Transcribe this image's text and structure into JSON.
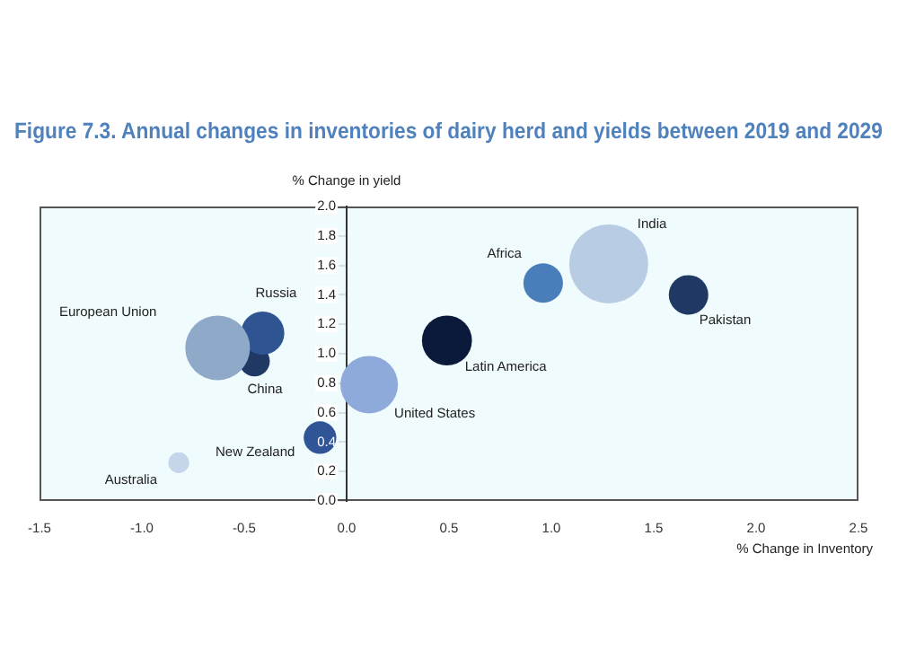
{
  "chart_data": {
    "type": "bubble",
    "title": "Figure 7.3. Annual changes in inventories of dairy herd and yields between 2019 and 2029",
    "xlabel": "% Change in Inventory",
    "ylabel": "% Change in yield",
    "series": [
      {
        "name": "India",
        "color": "#b8cce4",
        "x": [
          1.28
        ],
        "values": [
          1.61
        ],
        "sizes": [
          1
        ]
      },
      {
        "name": "Africa",
        "color": "#4a7ebb",
        "x": [
          0.96
        ],
        "values": [
          1.48
        ],
        "sizes": [
          0.25
        ]
      },
      {
        "name": "Pakistan",
        "color": "#1f3864",
        "x": [
          1.67
        ],
        "values": [
          1.4
        ],
        "sizes": [
          0.25
        ]
      },
      {
        "name": "Latin America",
        "color": "#0b1a3a",
        "x": [
          0.49
        ],
        "values": [
          1.09
        ],
        "sizes": [
          0.4
        ]
      },
      {
        "name": "European Union",
        "color": "#8fa9c9",
        "x": [
          -0.63
        ],
        "values": [
          1.04
        ],
        "sizes": [
          0.67
        ]
      },
      {
        "name": "Russia",
        "color": "#2e5591",
        "x": [
          -0.41
        ],
        "values": [
          1.14
        ],
        "sizes": [
          0.3
        ]
      },
      {
        "name": "China",
        "color": "#1f3864",
        "x": [
          -0.45
        ],
        "values": [
          0.95
        ],
        "sizes": [
          0.15
        ]
      },
      {
        "name": "United States",
        "color": "#8eaadb",
        "x": [
          0.11
        ],
        "values": [
          0.79
        ],
        "sizes": [
          0.53
        ]
      },
      {
        "name": "New Zealand",
        "color": "#2f5597",
        "x": [
          -0.13
        ],
        "values": [
          0.43
        ],
        "sizes": [
          0.17
        ]
      },
      {
        "name": "Australia",
        "color": "#c5d5ea",
        "x": [
          -0.82
        ],
        "values": [
          0.26
        ],
        "sizes": [
          0.07
        ]
      }
    ],
    "xlim": [
      -1.5,
      2.5
    ],
    "xticks": [
      -1.5,
      {
        "value": -1,
        "label": "-1.0"
      },
      -0.5,
      {
        "value": 0,
        "label": "0.0"
      },
      0.5,
      {
        "value": 1,
        "label": "1.0"
      },
      1.5,
      {
        "value": 2,
        "label": "2.0"
      },
      2.5
    ],
    "ylim": [
      0,
      2
    ],
    "yticks": [
      {
        "value": 0,
        "label": "0.0"
      },
      0.2,
      0.4,
      0.6,
      0.8,
      {
        "value": 1,
        "label": "1.0"
      },
      1.2,
      1.4,
      1.6,
      1.8,
      {
        "value": 2,
        "label": "2.0"
      }
    ],
    "grid": false,
    "legend": false
  }
}
